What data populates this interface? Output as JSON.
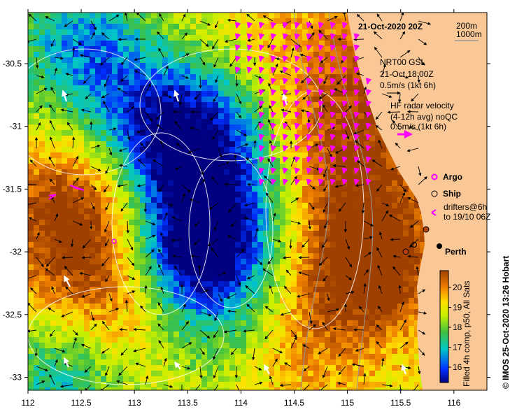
{
  "title": "21-Oct-2020 20Z",
  "depth_legend": [
    "200m",
    "1000m"
  ],
  "x_ticks": [
    "112",
    "112.5",
    "113",
    "113.5",
    "114",
    "114.5",
    "115",
    "115.5",
    "116"
  ],
  "y_ticks": [
    "-30.5",
    "-31",
    "-31.5",
    "-32",
    "-32.5",
    "-33"
  ],
  "gsl": {
    "name": "NRT00 GSL",
    "time": "21-Oct 18:00Z",
    "scale": "0.5m/s (1kt 6h)"
  },
  "hf": {
    "name": "HF radar velocity",
    "avg": "(4-12h avg) noQC",
    "scale": "0.5m/s (1kt 6h)"
  },
  "symbols": {
    "argo": "Argo",
    "ship": "Ship",
    "drifters_1": "drifters@6h",
    "drifters_2": "to 19/10 06Z"
  },
  "city": "Perth",
  "colorbar": {
    "ticks": [
      "20",
      "19",
      "18",
      "17",
      "16"
    ],
    "label": "Filled 4h comp, p50, All Sats"
  },
  "credit": "© IMOS 25-Oct-2020 13:26 Hobart",
  "colors": {
    "land": "#f9c896",
    "hf_arrow": "#ff00ff",
    "argo": "#ff00ff",
    "ship": "#000000",
    "contour": "#ffffff",
    "bathy": "#999999"
  }
}
